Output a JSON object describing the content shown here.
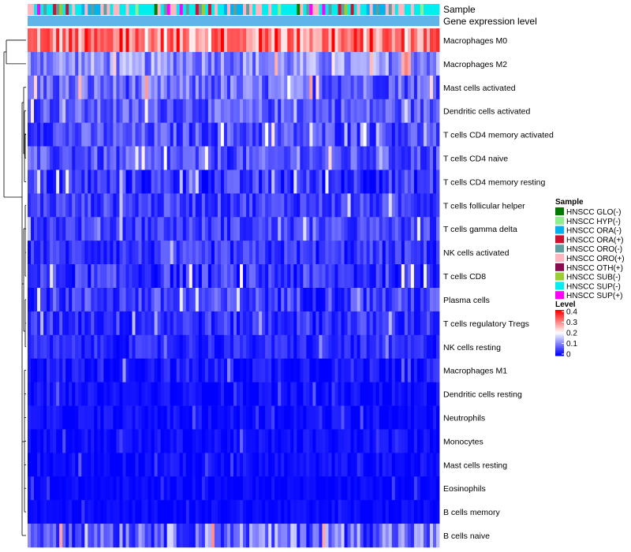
{
  "chart_data": {
    "type": "heatmap",
    "title": "",
    "annotation_tracks": [
      "Sample",
      "Gene expression level"
    ],
    "rows": [
      {
        "label": "Macrophages M0",
        "mean": 0.3,
        "spread": 0.1
      },
      {
        "label": "Macrophages M2",
        "mean": 0.11,
        "spread": 0.06
      },
      {
        "label": "Mast cells activated",
        "mean": 0.08,
        "spread": 0.06
      },
      {
        "label": "Dendritic cells activated",
        "mean": 0.07,
        "spread": 0.05
      },
      {
        "label": "T cells CD4 memory activated",
        "mean": 0.06,
        "spread": 0.05
      },
      {
        "label": "T cells CD4 naive",
        "mean": 0.06,
        "spread": 0.05
      },
      {
        "label": "T cells CD4 memory resting",
        "mean": 0.04,
        "spread": 0.05
      },
      {
        "label": "T cells follicular helper",
        "mean": 0.05,
        "spread": 0.04
      },
      {
        "label": "T cells gamma delta",
        "mean": 0.05,
        "spread": 0.04
      },
      {
        "label": "NK cells activated",
        "mean": 0.04,
        "spread": 0.04
      },
      {
        "label": "T cells CD8",
        "mean": 0.04,
        "spread": 0.05
      },
      {
        "label": "Plasma cells",
        "mean": 0.05,
        "spread": 0.05
      },
      {
        "label": "T cells regulatory  Tregs",
        "mean": 0.04,
        "spread": 0.04
      },
      {
        "label": "NK cells resting",
        "mean": 0.03,
        "spread": 0.03
      },
      {
        "label": "Macrophages M1",
        "mean": 0.02,
        "spread": 0.03
      },
      {
        "label": "Dendritic cells resting",
        "mean": 0.01,
        "spread": 0.02
      },
      {
        "label": "Neutrophils",
        "mean": 0.01,
        "spread": 0.02
      },
      {
        "label": "Monocytes",
        "mean": 0.01,
        "spread": 0.02
      },
      {
        "label": "Mast cells resting",
        "mean": 0.01,
        "spread": 0.02
      },
      {
        "label": "Eosinophils",
        "mean": 0.005,
        "spread": 0.015
      },
      {
        "label": "B cells memory",
        "mean": 0.005,
        "spread": 0.015
      },
      {
        "label": "B cells naive",
        "mean": 0.09,
        "spread": 0.08
      }
    ],
    "n_columns": 130,
    "column_sample_pattern": [
      5,
      8,
      8,
      5,
      2,
      8,
      4,
      5,
      8,
      1,
      8,
      2,
      5,
      7,
      8,
      4,
      8,
      5,
      5,
      2,
      8,
      8,
      9,
      0,
      8,
      5,
      4,
      8,
      3,
      8
    ],
    "color_scale": {
      "min": 0,
      "max": 0.4,
      "low": "#0000ff",
      "mid": "#ffffff",
      "high": "#ff0000",
      "mid_value": 0.2
    },
    "legend_sample": {
      "title": "Sample",
      "items": [
        {
          "label": "HNSCC GLO(-)",
          "color": "#007a00"
        },
        {
          "label": "HNSCC HYP(-)",
          "color": "#90ee90"
        },
        {
          "label": "HNSCC ORA(-)",
          "color": "#00b2ee"
        },
        {
          "label": "HNSCC ORA(+)",
          "color": "#d0102f"
        },
        {
          "label": "HNSCC ORO(-)",
          "color": "#5f9ea0"
        },
        {
          "label": "HNSCC ORO(+)",
          "color": "#ffb6c1"
        },
        {
          "label": "HNSCC OTH(+)",
          "color": "#8b0a50"
        },
        {
          "label": "HNSCC SUB(-)",
          "color": "#9acd32"
        },
        {
          "label": "HNSCC SUP(-)",
          "color": "#00eeee"
        },
        {
          "label": "HNSCC SUP(+)",
          "color": "#ff00ff"
        }
      ]
    },
    "legend_level": {
      "title": "Level",
      "ticks": [
        "0.4",
        "0.3",
        "0.2",
        "0.1",
        "0"
      ]
    },
    "gene_expression_color": "#5fb4e8"
  }
}
